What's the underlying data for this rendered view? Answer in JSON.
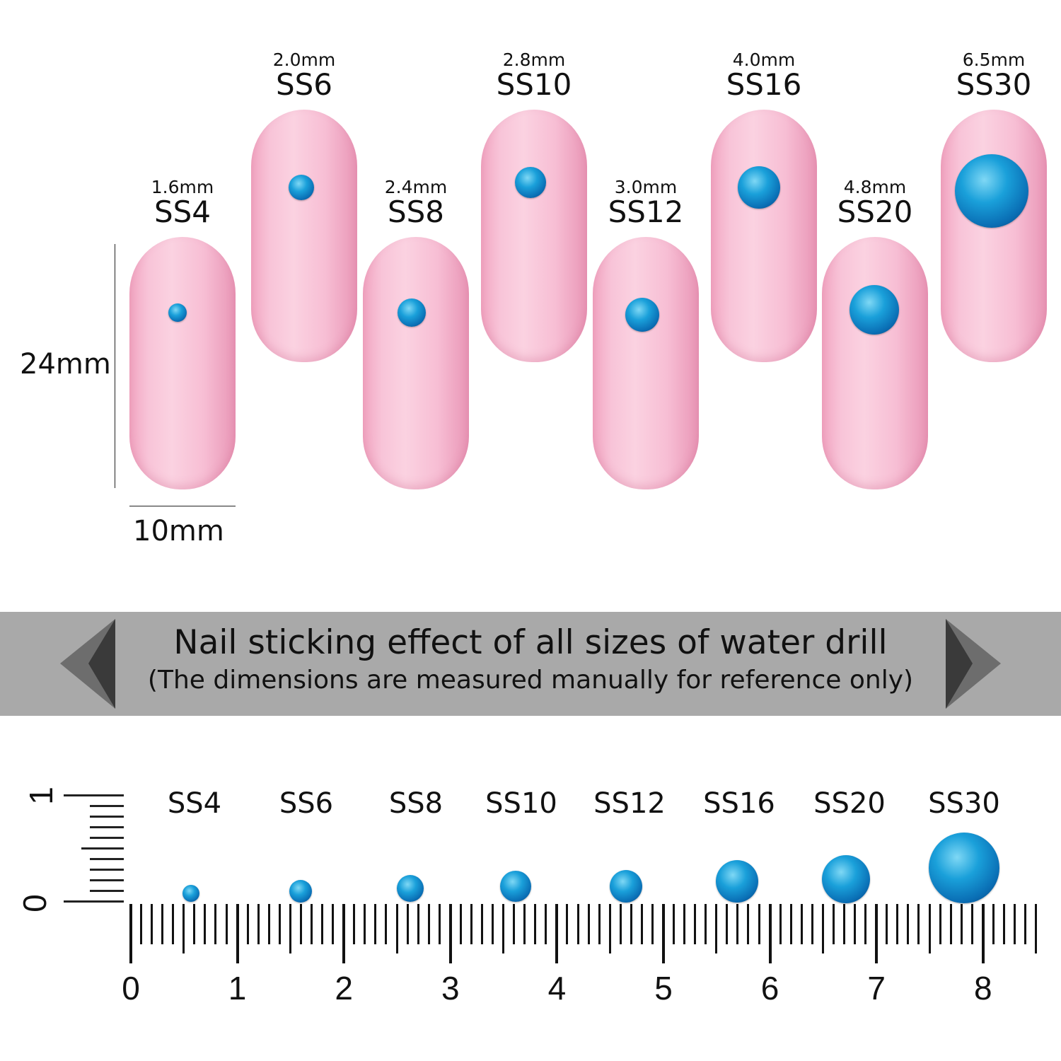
{
  "sizes": [
    {
      "ss": "SS4",
      "mm": "1.6mm"
    },
    {
      "ss": "SS6",
      "mm": "2.0mm"
    },
    {
      "ss": "SS8",
      "mm": "2.4mm"
    },
    {
      "ss": "SS10",
      "mm": "2.8mm"
    },
    {
      "ss": "SS12",
      "mm": "3.0mm"
    },
    {
      "ss": "SS16",
      "mm": "4.0mm"
    },
    {
      "ss": "SS20",
      "mm": "4.8mm"
    },
    {
      "ss": "SS30",
      "mm": "6.5mm"
    }
  ],
  "nail_height_label": "24mm",
  "nail_width_label": "10mm",
  "banner": {
    "title": "Nail sticking effect of all sizes of water drill",
    "subtitle": "(The dimensions are measured manually for reference only)"
  },
  "ruler": {
    "horizontal_labels": [
      "0",
      "1",
      "2",
      "3",
      "4",
      "5",
      "6",
      "7",
      "8"
    ],
    "vertical_labels": [
      "0",
      "1"
    ]
  },
  "colors": {
    "nail": "#f8c4d8",
    "gem": "#1aa0da",
    "banner": "#a9a9a9"
  }
}
